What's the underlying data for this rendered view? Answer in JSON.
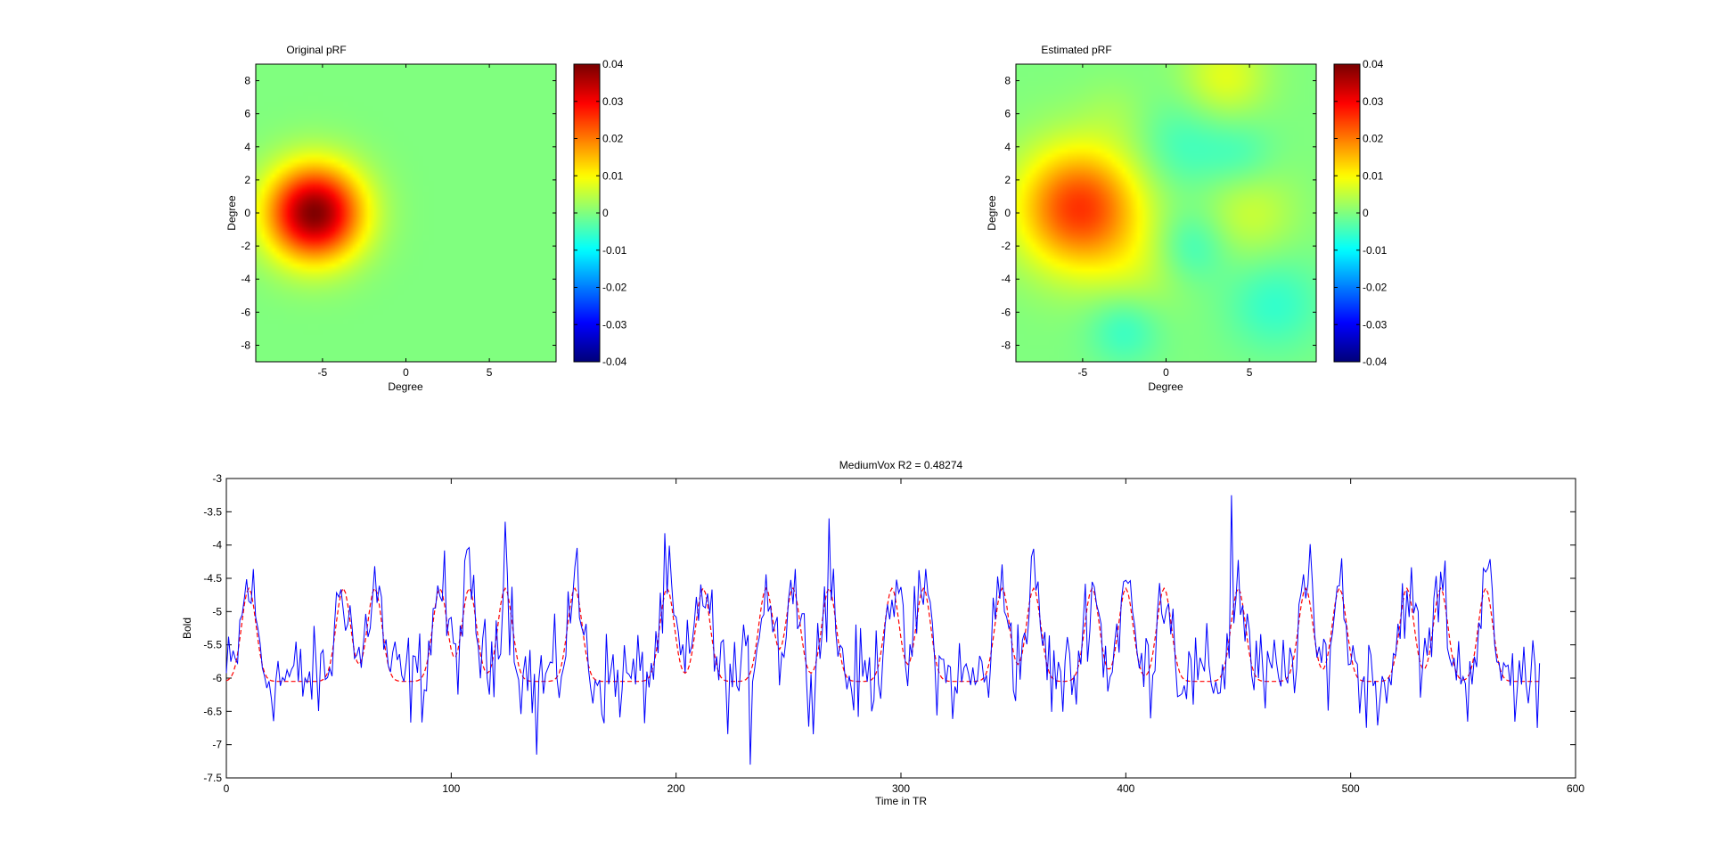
{
  "figure": {
    "background": "#ffffff"
  },
  "chart_data": [
    {
      "type": "heatmap",
      "title": "Original pRF",
      "xlabel": "Degree",
      "ylabel": "Degree",
      "xlim": [
        -9,
        9
      ],
      "ylim": [
        -9,
        9
      ],
      "x_ticks": [
        -5,
        0,
        5
      ],
      "y_ticks": [
        8,
        6,
        4,
        2,
        0,
        -2,
        -4,
        -6,
        -8
      ],
      "colormap": "jet",
      "clim": [
        -0.04,
        0.04
      ],
      "colorbar_ticks": [
        "0.04",
        "0.03",
        "0.02",
        "0.01",
        "0",
        "-0.01",
        "-0.02",
        "-0.03",
        "-0.04"
      ],
      "peaks": [
        {
          "x": -5.5,
          "y": 0,
          "sigma": 2.0,
          "amplitude": 0.04
        }
      ],
      "baseline": 0
    },
    {
      "type": "heatmap",
      "title": "Estimated pRF",
      "xlabel": "Degree",
      "ylabel": "Degree",
      "xlim": [
        -9,
        9
      ],
      "ylim": [
        -9,
        9
      ],
      "x_ticks": [
        -5,
        0,
        5
      ],
      "y_ticks": [
        8,
        6,
        4,
        2,
        0,
        -2,
        -4,
        -6,
        -8
      ],
      "colormap": "jet",
      "clim": [
        -0.04,
        0.04
      ],
      "colorbar_ticks": [
        "0.04",
        "0.03",
        "0.02",
        "0.01",
        "0",
        "-0.01",
        "-0.02",
        "-0.03",
        "-0.04"
      ],
      "peaks": [
        {
          "x": -5.2,
          "y": 0.3,
          "sigma": 2.6,
          "amplitude": 0.026
        },
        {
          "x": 3.5,
          "y": 8.2,
          "sigma": 1.8,
          "amplitude": 0.008
        },
        {
          "x": 5,
          "y": 0,
          "sigma": 2.0,
          "amplitude": 0.006
        },
        {
          "x": -1.5,
          "y": -3.5,
          "sigma": 2.0,
          "amplitude": 0.004
        },
        {
          "x": 1.5,
          "y": -2,
          "sigma": 1.5,
          "amplitude": -0.006
        },
        {
          "x": -2.5,
          "y": -7,
          "sigma": 1.5,
          "amplitude": -0.006
        },
        {
          "x": 1,
          "y": 4,
          "sigma": 2.0,
          "amplitude": -0.005
        },
        {
          "x": 6.5,
          "y": -5.5,
          "sigma": 2.0,
          "amplitude": -0.006
        },
        {
          "x": 4.5,
          "y": 3.5,
          "sigma": 1.5,
          "amplitude": -0.004
        },
        {
          "x": -3,
          "y": 6,
          "sigma": 1.5,
          "amplitude": 0.002
        }
      ],
      "baseline": 0
    },
    {
      "type": "line",
      "title": "MediumVox R2 = 0.48274",
      "xlabel": "Time in TR",
      "ylabel": "Bold",
      "xlim": [
        0,
        600
      ],
      "ylim": [
        -7.5,
        -3
      ],
      "x_ticks": [
        0,
        100,
        200,
        300,
        400,
        500,
        600
      ],
      "y_ticks": [
        -3,
        -3.5,
        -4,
        -4.5,
        -5,
        -5.5,
        -6,
        -6.5,
        -7,
        -7.5
      ],
      "n_points": 585,
      "series": [
        {
          "style": "solid",
          "color": "#0000ff",
          "baseline": -6.0,
          "peak_height": 1.2,
          "noise_amplitude": 0.45,
          "spike_peaks": [
            {
              "x": 124,
              "y": -3.65
            },
            {
              "x": 233,
              "y": -7.3
            },
            {
              "x": 268,
              "y": -3.6
            },
            {
              "x": 447,
              "y": -3.25
            },
            {
              "x": 138,
              "y": -7.15
            }
          ]
        },
        {
          "style": "dashed",
          "color": "#ff0000",
          "baseline": -6.05,
          "peak_height": 1.4,
          "peaks_x": [
            10,
            52,
            66,
            95,
            108,
            124,
            155,
            196,
            212,
            240,
            252,
            268,
            296,
            310,
            345,
            359,
            385,
            400,
            417,
            450,
            480,
            495,
            525,
            540,
            560
          ]
        }
      ]
    }
  ]
}
